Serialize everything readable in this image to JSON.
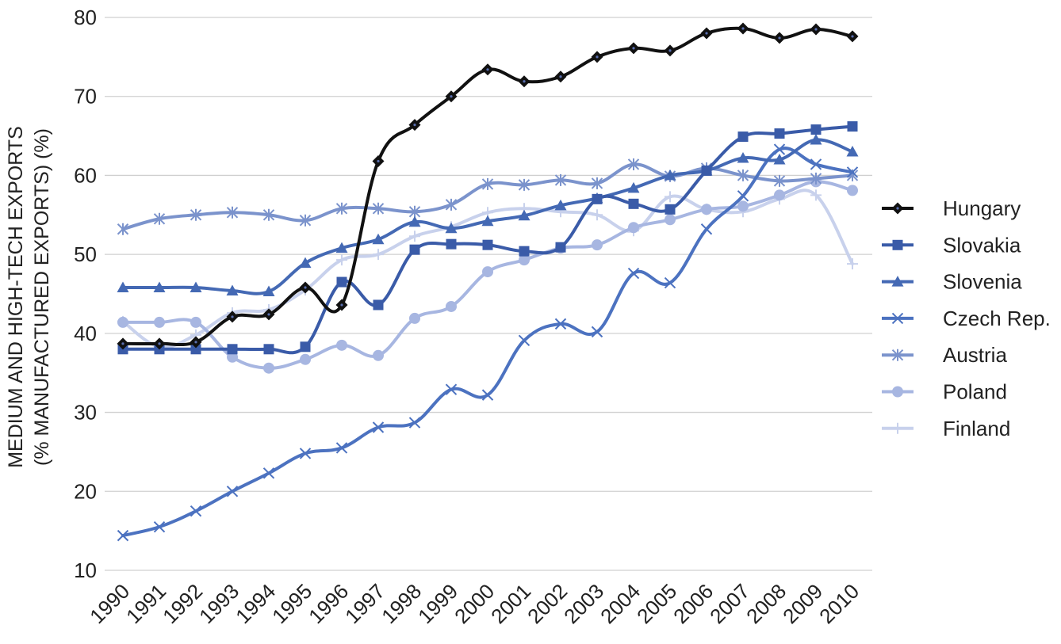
{
  "chart_data": {
    "type": "line",
    "title": "",
    "xlabel": "",
    "ylabel_line1": "MEDIUM AND HIGH-TECH EXPORTS",
    "ylabel_line2": "(% MANUFACTURED EXPORTS) (%)",
    "ylim": [
      10,
      80
    ],
    "yticks": [
      10,
      20,
      30,
      40,
      50,
      60,
      70,
      80
    ],
    "grid": "horizontal",
    "legend_position": "right",
    "x": [
      "1990",
      "1991",
      "1992",
      "1993",
      "1994",
      "1995",
      "1996",
      "1997",
      "1998",
      "1999",
      "2000",
      "2001",
      "2002",
      "2003",
      "2004",
      "2005",
      "2006",
      "2007",
      "2008",
      "2009",
      "2010"
    ],
    "series": [
      {
        "name": "Hungary",
        "color": "#111111",
        "marker": "diamond",
        "values": [
          38.7,
          38.7,
          38.9,
          42.1,
          42.4,
          45.8,
          43.6,
          61.8,
          66.4,
          70.0,
          73.4,
          71.9,
          72.5,
          75.0,
          76.1,
          75.8,
          78.0,
          78.6,
          77.4,
          78.5,
          77.6
        ]
      },
      {
        "name": "Slovakia",
        "color": "#3a5ba8",
        "marker": "square",
        "values": [
          38.0,
          38.0,
          38.0,
          38.0,
          38.0,
          38.3,
          46.5,
          43.6,
          50.6,
          51.3,
          51.2,
          50.4,
          50.9,
          57.0,
          56.4,
          55.7,
          60.6,
          64.9,
          65.3,
          65.8,
          66.2
        ]
      },
      {
        "name": "Slovenia",
        "color": "#4469b4",
        "marker": "triangle",
        "values": [
          45.8,
          45.8,
          45.8,
          45.4,
          45.3,
          48.9,
          50.8,
          51.9,
          54.1,
          53.3,
          54.2,
          54.9,
          56.2,
          57.1,
          58.4,
          60.0,
          60.6,
          62.2,
          62.0,
          64.5,
          63.0
        ]
      },
      {
        "name": "Czech Rep.",
        "color": "#4c72c0",
        "marker": "x",
        "values": [
          14.4,
          15.5,
          17.5,
          20.0,
          22.3,
          24.8,
          25.5,
          28.1,
          28.7,
          32.9,
          32.2,
          39.1,
          41.2,
          40.2,
          47.6,
          46.4,
          53.2,
          57.4,
          63.3,
          61.4,
          60.4
        ]
      },
      {
        "name": "Austria",
        "color": "#7b93cc",
        "marker": "star",
        "values": [
          53.2,
          54.5,
          55.0,
          55.3,
          55.0,
          54.3,
          55.8,
          55.8,
          55.4,
          56.3,
          58.9,
          58.8,
          59.4,
          59.0,
          61.4,
          59.9,
          60.9,
          60.0,
          59.3,
          59.6,
          60.0
        ]
      },
      {
        "name": "Poland",
        "color": "#a7b6e1",
        "marker": "circle",
        "values": [
          41.4,
          41.4,
          41.4,
          37.0,
          35.6,
          36.7,
          38.5,
          37.2,
          41.9,
          43.4,
          47.8,
          49.3,
          50.8,
          51.2,
          53.4,
          54.4,
          55.7,
          56.1,
          57.5,
          59.2,
          58.1
        ]
      },
      {
        "name": "Finland",
        "color": "#c8d1ec",
        "marker": "plus",
        "values": [
          41.5,
          38.3,
          39.8,
          42.6,
          43.0,
          45.5,
          49.3,
          50.0,
          52.3,
          53.5,
          55.3,
          55.8,
          55.4,
          55.0,
          53.0,
          57.3,
          55.7,
          55.4,
          57.0,
          57.5,
          48.8
        ]
      }
    ]
  }
}
